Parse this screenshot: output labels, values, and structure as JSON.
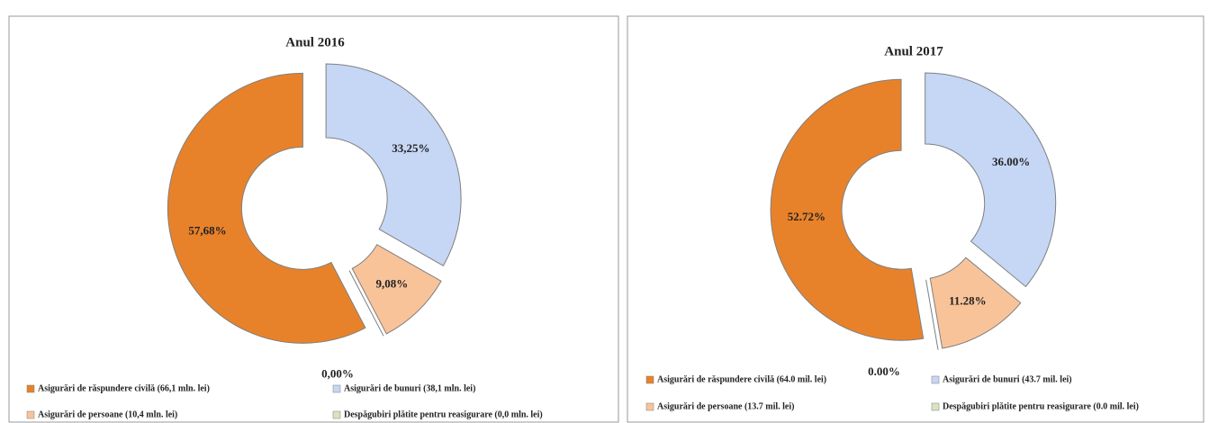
{
  "chart_data": [
    {
      "type": "pie",
      "title": "Anul 2016",
      "categories": [
        "Asigurări de răspundere civilă (66,1 mln. lei)",
        "Asigurări de bunuri (38,1 mln. lei)",
        "Asigurări de persoane (10,4 mln. lei)",
        "Despăgubiri plătite pentru reasigurare (0,0 mln. lei)"
      ],
      "values": [
        57.68,
        33.25,
        9.08,
        0.0
      ],
      "value_labels": [
        "57,68%",
        "33,25%",
        "9,08%",
        "0,00%"
      ],
      "colors": [
        "#e8822a",
        "#c6d6f5",
        "#f9c39a",
        "#d7e4bd"
      ],
      "legend": "bottom"
    },
    {
      "type": "pie",
      "title": "Anul 2017",
      "categories": [
        "Asigurări de răspundere civilă (64.0 mil. lei)",
        "Asigurări de bunuri (43.7 mil. lei)",
        "Asigurări de persoane (13.7 mil. lei)",
        "Despăgubiri plătite pentru reasigurare (0.0 mil. lei)"
      ],
      "values": [
        52.72,
        36.0,
        11.28,
        0.0
      ],
      "value_labels": [
        "52.72%",
        "36.00%",
        "11.28%",
        "0.00%"
      ],
      "colors": [
        "#e8822a",
        "#c6d6f5",
        "#f9c39a",
        "#d7e4bd"
      ],
      "legend": "bottom"
    }
  ]
}
